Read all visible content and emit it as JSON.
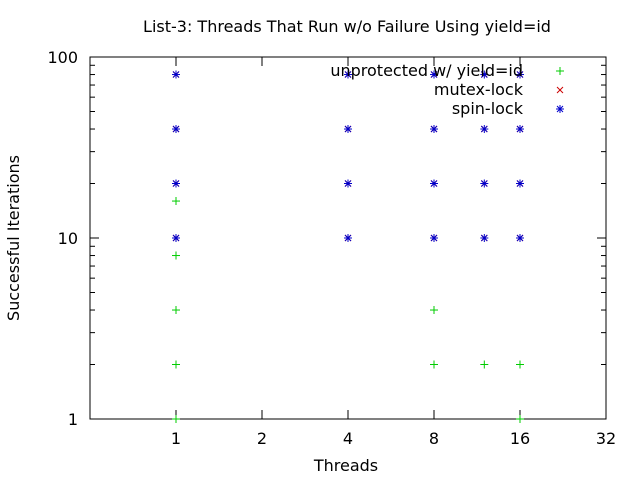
{
  "chart_data": {
    "type": "scatter",
    "title": "List-3: Threads That Run w/o Failure Using yield=id",
    "xlabel": "Threads",
    "ylabel": "Successful Iterations",
    "xscale": "log2",
    "yscale": "log10",
    "xlim": [
      0.5,
      32
    ],
    "ylim": [
      1,
      100
    ],
    "xticks": [
      1,
      2,
      4,
      8,
      16,
      32
    ],
    "xtick_labels": [
      "1",
      "2",
      "4",
      "8",
      "16",
      "32"
    ],
    "yticks": [
      1,
      10,
      100
    ],
    "ytick_labels": [
      "1",
      "10",
      "100"
    ],
    "grid": false,
    "legend_position": "top-right",
    "series": [
      {
        "name": "unprotected w/ yield=id",
        "color": "#00cc00",
        "marker": "plus",
        "points": [
          [
            1,
            1
          ],
          [
            1,
            2
          ],
          [
            1,
            4
          ],
          [
            1,
            8
          ],
          [
            1,
            16
          ],
          [
            8,
            2
          ],
          [
            8,
            4
          ],
          [
            12,
            2
          ],
          [
            16,
            1
          ],
          [
            16,
            2
          ]
        ]
      },
      {
        "name": "mutex-lock",
        "color": "#cc0000",
        "marker": "cross",
        "points": [
          [
            1,
            10
          ],
          [
            1,
            20
          ],
          [
            1,
            40
          ],
          [
            1,
            80
          ],
          [
            4,
            10
          ],
          [
            4,
            20
          ],
          [
            4,
            40
          ],
          [
            4,
            80
          ],
          [
            8,
            10
          ],
          [
            8,
            20
          ],
          [
            8,
            40
          ],
          [
            8,
            80
          ],
          [
            12,
            10
          ],
          [
            12,
            20
          ],
          [
            12,
            40
          ],
          [
            12,
            80
          ],
          [
            16,
            10
          ],
          [
            16,
            20
          ],
          [
            16,
            40
          ],
          [
            16,
            80
          ]
        ]
      },
      {
        "name": "spin-lock",
        "color": "#0000cc",
        "marker": "star",
        "points": [
          [
            1,
            10
          ],
          [
            1,
            20
          ],
          [
            1,
            40
          ],
          [
            1,
            80
          ],
          [
            4,
            10
          ],
          [
            4,
            20
          ],
          [
            4,
            40
          ],
          [
            4,
            80
          ],
          [
            8,
            10
          ],
          [
            8,
            20
          ],
          [
            8,
            40
          ],
          [
            8,
            80
          ],
          [
            12,
            10
          ],
          [
            12,
            20
          ],
          [
            12,
            40
          ],
          [
            12,
            80
          ],
          [
            16,
            10
          ],
          [
            16,
            20
          ],
          [
            16,
            40
          ],
          [
            16,
            80
          ]
        ]
      }
    ]
  }
}
